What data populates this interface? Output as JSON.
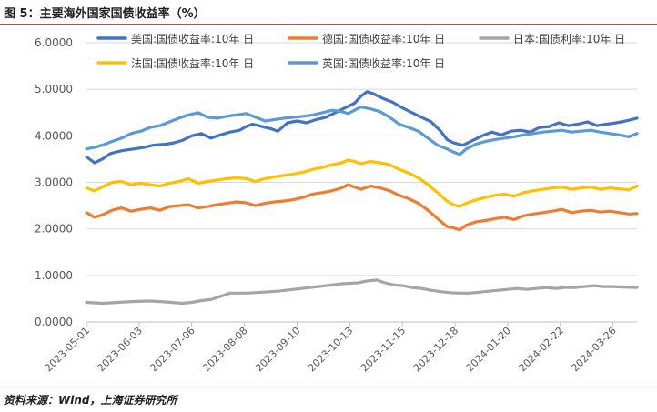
{
  "figure": {
    "title": "图 5：主要海外国家国债收益率（%）",
    "source": "资料来源：Wind，上海证券研究所"
  },
  "chart_data": {
    "type": "line",
    "title": "",
    "ylim": [
      0,
      6
    ],
    "yticks": [
      "0.0000",
      "1.0000",
      "2.0000",
      "3.0000",
      "4.0000",
      "5.0000",
      "6.0000"
    ],
    "x_tick_labels": [
      "2023-05-01",
      "2023-06-03",
      "2023-07-06",
      "2023-08-08",
      "2023-09-10",
      "2023-10-13",
      "2023-11-15",
      "2023-12-18",
      "2024-01-20",
      "2024-02-22",
      "2024-03-26"
    ],
    "x_range_days": [
      0,
      345
    ],
    "x_tick_days": [
      0,
      33,
      66,
      99,
      132,
      165,
      198,
      231,
      264,
      297,
      330
    ],
    "series": [
      {
        "name": "美国:国债收益率:10年 日",
        "color": "#4472c4",
        "points": [
          [
            0,
            3.55
          ],
          [
            5,
            3.42
          ],
          [
            10,
            3.5
          ],
          [
            15,
            3.62
          ],
          [
            22,
            3.68
          ],
          [
            30,
            3.72
          ],
          [
            36,
            3.75
          ],
          [
            42,
            3.8
          ],
          [
            50,
            3.82
          ],
          [
            55,
            3.85
          ],
          [
            60,
            3.9
          ],
          [
            66,
            4.0
          ],
          [
            72,
            4.05
          ],
          [
            78,
            3.95
          ],
          [
            84,
            4.02
          ],
          [
            90,
            4.08
          ],
          [
            96,
            4.12
          ],
          [
            100,
            4.2
          ],
          [
            104,
            4.25
          ],
          [
            108,
            4.22
          ],
          [
            112,
            4.18
          ],
          [
            116,
            4.15
          ],
          [
            120,
            4.1
          ],
          [
            126,
            4.28
          ],
          [
            132,
            4.32
          ],
          [
            138,
            4.28
          ],
          [
            144,
            4.35
          ],
          [
            150,
            4.4
          ],
          [
            156,
            4.5
          ],
          [
            162,
            4.6
          ],
          [
            168,
            4.7
          ],
          [
            172,
            4.85
          ],
          [
            176,
            4.95
          ],
          [
            180,
            4.9
          ],
          [
            186,
            4.8
          ],
          [
            192,
            4.72
          ],
          [
            198,
            4.6
          ],
          [
            204,
            4.5
          ],
          [
            210,
            4.4
          ],
          [
            216,
            4.3
          ],
          [
            222,
            4.1
          ],
          [
            226,
            3.92
          ],
          [
            230,
            3.85
          ],
          [
            236,
            3.8
          ],
          [
            242,
            3.9
          ],
          [
            248,
            4.0
          ],
          [
            254,
            4.08
          ],
          [
            260,
            4.02
          ],
          [
            266,
            4.1
          ],
          [
            272,
            4.12
          ],
          [
            278,
            4.08
          ],
          [
            284,
            4.18
          ],
          [
            290,
            4.2
          ],
          [
            296,
            4.28
          ],
          [
            302,
            4.22
          ],
          [
            308,
            4.25
          ],
          [
            314,
            4.3
          ],
          [
            320,
            4.22
          ],
          [
            326,
            4.25
          ],
          [
            332,
            4.28
          ],
          [
            338,
            4.32
          ],
          [
            345,
            4.38
          ]
        ]
      },
      {
        "name": "德国:国债收益率:10年 日",
        "color": "#ed7d31",
        "points": [
          [
            0,
            2.35
          ],
          [
            5,
            2.25
          ],
          [
            10,
            2.3
          ],
          [
            16,
            2.4
          ],
          [
            22,
            2.45
          ],
          [
            28,
            2.38
          ],
          [
            34,
            2.42
          ],
          [
            40,
            2.45
          ],
          [
            46,
            2.4
          ],
          [
            52,
            2.48
          ],
          [
            58,
            2.5
          ],
          [
            64,
            2.52
          ],
          [
            70,
            2.45
          ],
          [
            76,
            2.48
          ],
          [
            82,
            2.52
          ],
          [
            88,
            2.55
          ],
          [
            94,
            2.58
          ],
          [
            100,
            2.56
          ],
          [
            106,
            2.5
          ],
          [
            112,
            2.55
          ],
          [
            118,
            2.58
          ],
          [
            124,
            2.6
          ],
          [
            130,
            2.63
          ],
          [
            136,
            2.68
          ],
          [
            142,
            2.75
          ],
          [
            148,
            2.78
          ],
          [
            154,
            2.82
          ],
          [
            160,
            2.88
          ],
          [
            164,
            2.95
          ],
          [
            168,
            2.9
          ],
          [
            172,
            2.85
          ],
          [
            178,
            2.92
          ],
          [
            184,
            2.88
          ],
          [
            190,
            2.82
          ],
          [
            196,
            2.72
          ],
          [
            202,
            2.65
          ],
          [
            208,
            2.55
          ],
          [
            214,
            2.4
          ],
          [
            220,
            2.22
          ],
          [
            226,
            2.05
          ],
          [
            230,
            2.02
          ],
          [
            234,
            1.98
          ],
          [
            238,
            2.08
          ],
          [
            244,
            2.15
          ],
          [
            250,
            2.18
          ],
          [
            256,
            2.22
          ],
          [
            262,
            2.25
          ],
          [
            268,
            2.2
          ],
          [
            274,
            2.28
          ],
          [
            280,
            2.32
          ],
          [
            286,
            2.35
          ],
          [
            292,
            2.38
          ],
          [
            298,
            2.42
          ],
          [
            304,
            2.35
          ],
          [
            310,
            2.38
          ],
          [
            316,
            2.4
          ],
          [
            322,
            2.36
          ],
          [
            328,
            2.38
          ],
          [
            334,
            2.35
          ],
          [
            340,
            2.32
          ],
          [
            345,
            2.33
          ]
        ]
      },
      {
        "name": "日本:国债利率:10年 日",
        "color": "#a5a5a5",
        "points": [
          [
            0,
            0.42
          ],
          [
            10,
            0.4
          ],
          [
            20,
            0.42
          ],
          [
            30,
            0.44
          ],
          [
            40,
            0.45
          ],
          [
            50,
            0.43
          ],
          [
            60,
            0.4
          ],
          [
            66,
            0.42
          ],
          [
            72,
            0.46
          ],
          [
            78,
            0.48
          ],
          [
            84,
            0.55
          ],
          [
            90,
            0.62
          ],
          [
            100,
            0.62
          ],
          [
            110,
            0.64
          ],
          [
            120,
            0.66
          ],
          [
            130,
            0.7
          ],
          [
            140,
            0.74
          ],
          [
            150,
            0.78
          ],
          [
            160,
            0.82
          ],
          [
            170,
            0.84
          ],
          [
            176,
            0.88
          ],
          [
            182,
            0.9
          ],
          [
            186,
            0.85
          ],
          [
            192,
            0.8
          ],
          [
            198,
            0.78
          ],
          [
            204,
            0.74
          ],
          [
            210,
            0.72
          ],
          [
            216,
            0.68
          ],
          [
            222,
            0.65
          ],
          [
            228,
            0.63
          ],
          [
            234,
            0.62
          ],
          [
            240,
            0.62
          ],
          [
            246,
            0.64
          ],
          [
            252,
            0.66
          ],
          [
            258,
            0.68
          ],
          [
            264,
            0.7
          ],
          [
            270,
            0.72
          ],
          [
            276,
            0.7
          ],
          [
            282,
            0.72
          ],
          [
            288,
            0.74
          ],
          [
            294,
            0.72
          ],
          [
            300,
            0.74
          ],
          [
            306,
            0.74
          ],
          [
            312,
            0.76
          ],
          [
            318,
            0.78
          ],
          [
            324,
            0.76
          ],
          [
            330,
            0.76
          ],
          [
            336,
            0.75
          ],
          [
            345,
            0.74
          ]
        ]
      },
      {
        "name": "法国:国债收益率:10年 日",
        "color": "#ffc000",
        "points": [
          [
            0,
            2.88
          ],
          [
            5,
            2.82
          ],
          [
            10,
            2.9
          ],
          [
            16,
            3.0
          ],
          [
            22,
            3.02
          ],
          [
            28,
            2.95
          ],
          [
            34,
            2.98
          ],
          [
            40,
            2.95
          ],
          [
            46,
            2.92
          ],
          [
            52,
            2.98
          ],
          [
            58,
            3.02
          ],
          [
            64,
            3.08
          ],
          [
            70,
            2.98
          ],
          [
            76,
            3.02
          ],
          [
            82,
            3.05
          ],
          [
            88,
            3.08
          ],
          [
            94,
            3.1
          ],
          [
            100,
            3.08
          ],
          [
            106,
            3.02
          ],
          [
            112,
            3.08
          ],
          [
            118,
            3.12
          ],
          [
            124,
            3.15
          ],
          [
            130,
            3.18
          ],
          [
            136,
            3.22
          ],
          [
            142,
            3.28
          ],
          [
            148,
            3.32
          ],
          [
            154,
            3.38
          ],
          [
            160,
            3.42
          ],
          [
            164,
            3.48
          ],
          [
            168,
            3.45
          ],
          [
            172,
            3.4
          ],
          [
            178,
            3.45
          ],
          [
            184,
            3.42
          ],
          [
            190,
            3.38
          ],
          [
            196,
            3.28
          ],
          [
            202,
            3.2
          ],
          [
            208,
            3.1
          ],
          [
            214,
            2.95
          ],
          [
            220,
            2.78
          ],
          [
            226,
            2.6
          ],
          [
            230,
            2.52
          ],
          [
            234,
            2.48
          ],
          [
            238,
            2.55
          ],
          [
            244,
            2.62
          ],
          [
            250,
            2.68
          ],
          [
            256,
            2.72
          ],
          [
            262,
            2.75
          ],
          [
            268,
            2.7
          ],
          [
            274,
            2.78
          ],
          [
            280,
            2.82
          ],
          [
            286,
            2.85
          ],
          [
            292,
            2.88
          ],
          [
            298,
            2.9
          ],
          [
            304,
            2.85
          ],
          [
            310,
            2.88
          ],
          [
            316,
            2.9
          ],
          [
            322,
            2.85
          ],
          [
            328,
            2.88
          ],
          [
            334,
            2.86
          ],
          [
            340,
            2.84
          ],
          [
            345,
            2.92
          ]
        ]
      },
      {
        "name": "英国:国债收益率:10年 日",
        "color": "#5b9bd5",
        "points": [
          [
            0,
            3.72
          ],
          [
            5,
            3.75
          ],
          [
            10,
            3.8
          ],
          [
            16,
            3.88
          ],
          [
            22,
            3.95
          ],
          [
            28,
            4.05
          ],
          [
            34,
            4.1
          ],
          [
            40,
            4.18
          ],
          [
            46,
            4.22
          ],
          [
            52,
            4.3
          ],
          [
            58,
            4.38
          ],
          [
            64,
            4.45
          ],
          [
            70,
            4.5
          ],
          [
            76,
            4.4
          ],
          [
            82,
            4.38
          ],
          [
            88,
            4.42
          ],
          [
            94,
            4.45
          ],
          [
            100,
            4.48
          ],
          [
            106,
            4.4
          ],
          [
            112,
            4.32
          ],
          [
            118,
            4.35
          ],
          [
            124,
            4.38
          ],
          [
            130,
            4.4
          ],
          [
            136,
            4.42
          ],
          [
            142,
            4.45
          ],
          [
            148,
            4.5
          ],
          [
            154,
            4.55
          ],
          [
            160,
            4.52
          ],
          [
            164,
            4.48
          ],
          [
            168,
            4.55
          ],
          [
            172,
            4.62
          ],
          [
            178,
            4.58
          ],
          [
            184,
            4.52
          ],
          [
            190,
            4.4
          ],
          [
            196,
            4.25
          ],
          [
            202,
            4.18
          ],
          [
            208,
            4.1
          ],
          [
            214,
            3.95
          ],
          [
            220,
            3.8
          ],
          [
            226,
            3.72
          ],
          [
            230,
            3.65
          ],
          [
            234,
            3.6
          ],
          [
            238,
            3.72
          ],
          [
            244,
            3.82
          ],
          [
            250,
            3.88
          ],
          [
            256,
            3.92
          ],
          [
            262,
            3.95
          ],
          [
            268,
            3.98
          ],
          [
            274,
            4.02
          ],
          [
            280,
            4.05
          ],
          [
            286,
            4.08
          ],
          [
            292,
            4.1
          ],
          [
            298,
            4.12
          ],
          [
            304,
            4.08
          ],
          [
            310,
            4.1
          ],
          [
            316,
            4.12
          ],
          [
            322,
            4.08
          ],
          [
            328,
            4.05
          ],
          [
            334,
            4.02
          ],
          [
            340,
            3.98
          ],
          [
            345,
            4.05
          ]
        ]
      }
    ]
  }
}
